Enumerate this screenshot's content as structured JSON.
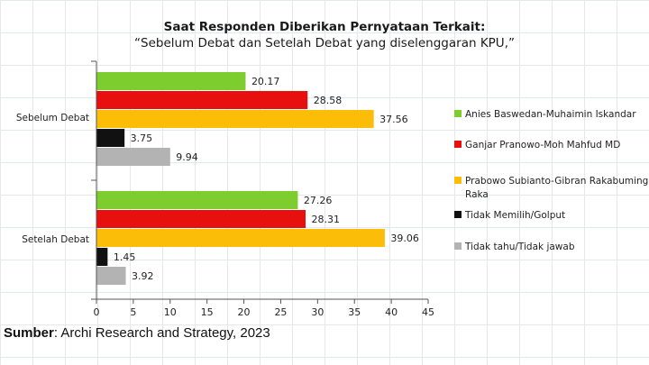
{
  "title": "Saat Responden Diberikan Pernyataan Terkait:",
  "subtitle": "“Sebelum Debat dan Setelah Debat yang diselenggaran KPU,”",
  "source": {
    "label": "Sumber",
    "text": ": Archi Research and Strategy, 2023"
  },
  "chart_data": {
    "type": "bar",
    "orientation": "horizontal",
    "title": "Saat Responden Diberikan Pernyataan Terkait:",
    "subtitle": "“Sebelum Debat dan Setelah Debat yang diselenggaran KPU,”",
    "categories": [
      "Sebelum Debat",
      "Setelah Debat"
    ],
    "xlim": [
      0,
      45
    ],
    "xticks": [
      0,
      5,
      10,
      15,
      20,
      25,
      30,
      35,
      40,
      45
    ],
    "legend_position": "right",
    "series": [
      {
        "name": "Anies Baswedan-Muhaimin Iskandar",
        "color": "#7dcd2f",
        "values": [
          20.17,
          27.26
        ],
        "labels": [
          "20.17",
          "27.26"
        ]
      },
      {
        "name": "Ganjar Pranowo-Moh Mahfud MD",
        "color": "#e8100f",
        "values": [
          28.58,
          28.31
        ],
        "labels": [
          "28.58",
          "28.31"
        ]
      },
      {
        "name": "Prabowo Subianto-Gibran Rakabuming Raka",
        "color": "#fbbd08",
        "values": [
          37.56,
          39.06
        ],
        "labels": [
          "37.56",
          "39.06"
        ]
      },
      {
        "name": "Tidak Memilih/Golput",
        "color": "#111111",
        "values": [
          3.75,
          1.45
        ],
        "labels": [
          "3.75",
          "1.45"
        ]
      },
      {
        "name": "Tidak tahu/Tidak jawab",
        "color": "#b3b3b3",
        "values": [
          9.94,
          3.92
        ],
        "labels": [
          "9.94",
          "3.92"
        ]
      }
    ]
  }
}
